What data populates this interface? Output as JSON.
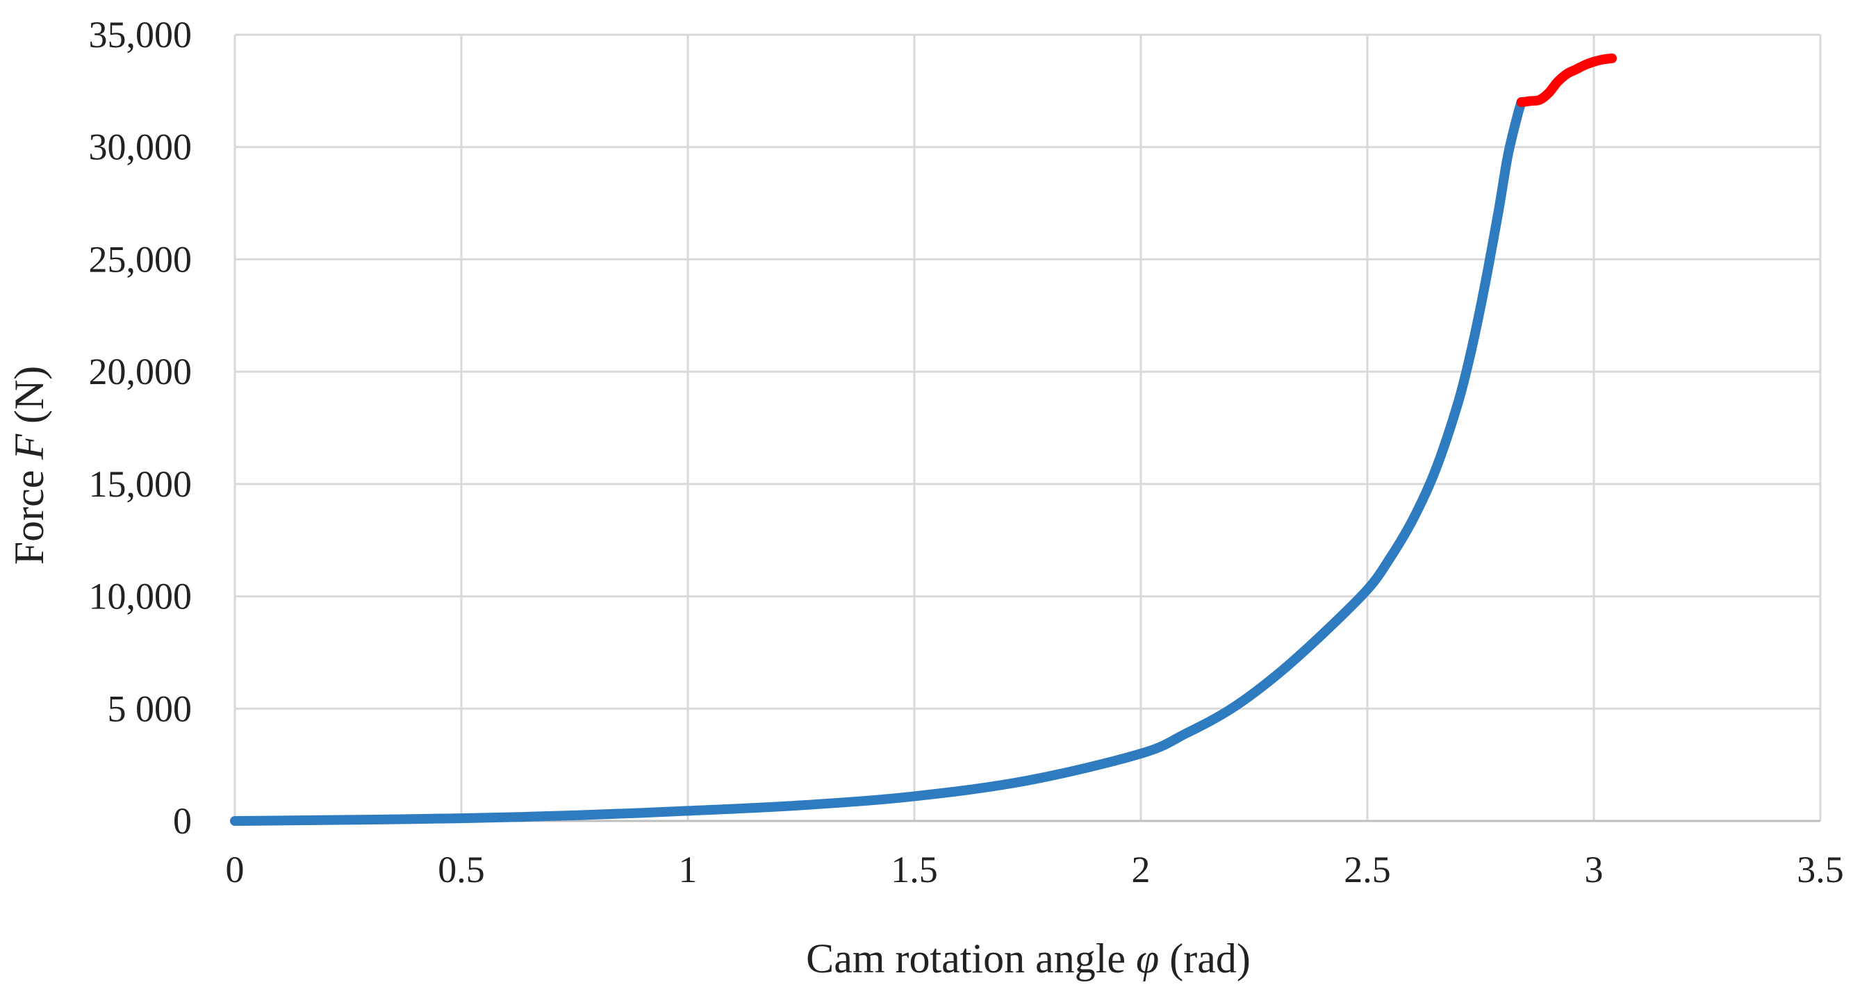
{
  "chart_data": {
    "type": "line",
    "xlabel": {
      "prefix": "Cam rotation angle ",
      "symbol": "φ",
      "suffix": " (rad)"
    },
    "ylabel": {
      "prefix": "Force ",
      "symbol": "F",
      "suffix": " (N)"
    },
    "xlim": [
      0,
      3.5
    ],
    "ylim": [
      0,
      35000
    ],
    "grid": true,
    "legend": "none",
    "x_ticks": [
      {
        "value": 0,
        "label": "0"
      },
      {
        "value": 0.5,
        "label": "0.5"
      },
      {
        "value": 1,
        "label": "1"
      },
      {
        "value": 1.5,
        "label": "1.5"
      },
      {
        "value": 2,
        "label": "2"
      },
      {
        "value": 2.5,
        "label": "2.5"
      },
      {
        "value": 3,
        "label": "3"
      },
      {
        "value": 3.5,
        "label": "3.5"
      }
    ],
    "y_ticks": [
      {
        "value": 0,
        "label": "0"
      },
      {
        "value": 5000,
        "label": "5 000"
      },
      {
        "value": 10000,
        "label": "10,000"
      },
      {
        "value": 15000,
        "label": "15,000"
      },
      {
        "value": 20000,
        "label": "20,000"
      },
      {
        "value": 25000,
        "label": "25,000"
      },
      {
        "value": 30000,
        "label": "30,000"
      },
      {
        "value": 35000,
        "label": "35,000"
      }
    ],
    "series": [
      {
        "color": "#2e7bbf",
        "x": [
          0,
          0.25,
          0.5,
          0.75,
          1.0,
          1.25,
          1.5,
          1.75,
          2.0,
          2.1,
          2.2,
          2.3,
          2.4,
          2.5,
          2.55,
          2.6,
          2.65,
          2.7,
          2.73,
          2.76,
          2.79,
          2.81,
          2.83,
          2.84
        ],
        "y": [
          0,
          50,
          120,
          250,
          450,
          700,
          1100,
          1800,
          3000,
          3900,
          5000,
          6500,
          8300,
          10300,
          11700,
          13400,
          15600,
          18600,
          21000,
          23900,
          27200,
          29600,
          31300,
          32000
        ]
      },
      {
        "color": "#ff0000",
        "x": [
          2.84,
          2.86,
          2.88,
          2.9,
          2.92,
          2.94,
          2.96,
          2.98,
          3.0,
          3.02,
          3.04
        ],
        "y": [
          32000,
          32050,
          32100,
          32400,
          32900,
          33250,
          33450,
          33650,
          33800,
          33900,
          33950
        ]
      }
    ]
  }
}
